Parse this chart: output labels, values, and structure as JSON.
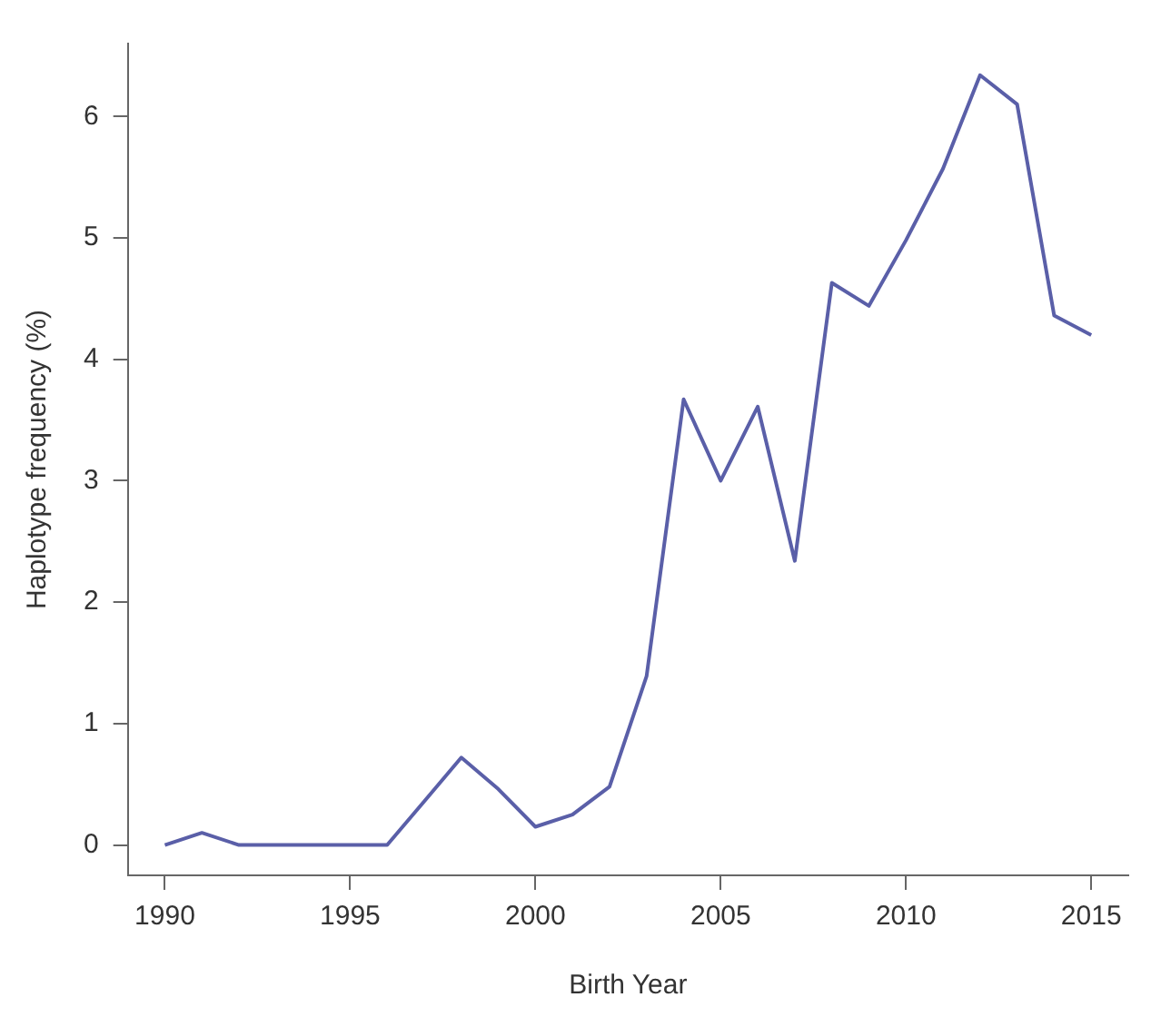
{
  "chart_data": {
    "type": "line",
    "xlabel": "Birth Year",
    "ylabel": "Haplotype frequency (%)",
    "x": [
      1990,
      1991,
      1992,
      1993,
      1994,
      1995,
      1996,
      1997,
      1998,
      1999,
      2000,
      2001,
      2002,
      2003,
      2004,
      2005,
      2006,
      2007,
      2008,
      2009,
      2010,
      2011,
      2012,
      2013,
      2014,
      2015
    ],
    "series": [
      {
        "color": "#5a5fa8",
        "values": [
          0,
          0.1,
          0,
          0,
          0,
          0,
          0,
          0.36,
          0.72,
          0.46,
          0.15,
          0.25,
          0.48,
          1.39,
          3.67,
          3.0,
          3.61,
          2.34,
          4.63,
          4.44,
          4.98,
          5.57,
          6.34,
          6.1,
          4.36,
          4.2
        ]
      }
    ],
    "xlim": [
      1989,
      2016
    ],
    "xticks": [
      {
        "value": 1990,
        "label": "1990"
      },
      {
        "value": 1995,
        "label": "1995"
      },
      {
        "value": 2000,
        "label": "2000"
      },
      {
        "value": 2005,
        "label": "2005"
      },
      {
        "value": 2010,
        "label": "2010"
      },
      {
        "value": 2015,
        "label": "2015"
      }
    ],
    "ylim": [
      -0.25,
      6.6
    ],
    "yticks": [
      0,
      1,
      2,
      3,
      4,
      5,
      6
    ],
    "grid": false,
    "legend": false,
    "marker": "none",
    "line_style": "solid"
  }
}
